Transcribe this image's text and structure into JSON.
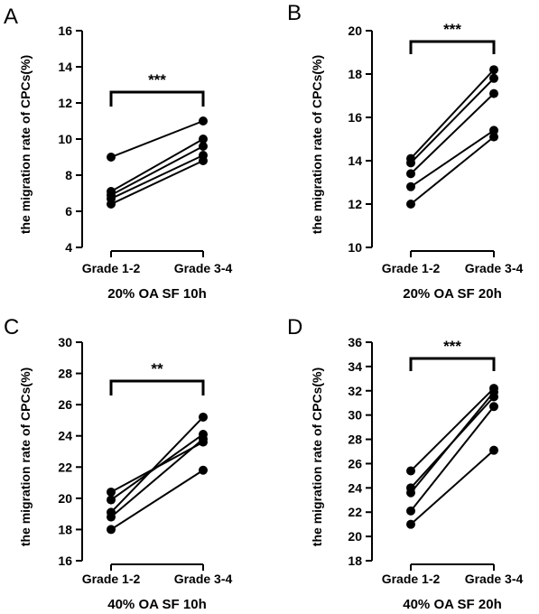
{
  "figure": {
    "colors": {
      "ink": "#000000",
      "background": "#ffffff"
    }
  },
  "chart_data": [
    {
      "type": "line",
      "panel": "A",
      "ylabel": "the migration rate of CPCs(%)",
      "xlabel": "20% OA SF  10h",
      "categories": [
        "Grade 1-2",
        "Grade 3-4"
      ],
      "ylim": [
        4,
        16
      ],
      "yticks": [
        4,
        6,
        8,
        10,
        12,
        14,
        16
      ],
      "significance": "***",
      "series": [
        {
          "values": [
            9.0,
            11.0
          ]
        },
        {
          "values": [
            7.1,
            10.0
          ]
        },
        {
          "values": [
            6.9,
            9.6
          ]
        },
        {
          "values": [
            6.7,
            9.1
          ]
        },
        {
          "values": [
            6.4,
            8.8
          ]
        }
      ]
    },
    {
      "type": "line",
      "panel": "B",
      "ylabel": "the migration rate of CPCs(%)",
      "xlabel": "20% OA SF  20h",
      "categories": [
        "Grade 1-2",
        "Grade 3-4"
      ],
      "ylim": [
        10,
        20
      ],
      "yticks": [
        10,
        12,
        14,
        16,
        18,
        20
      ],
      "significance": "***",
      "series": [
        {
          "values": [
            14.1,
            18.2
          ]
        },
        {
          "values": [
            13.9,
            17.8
          ]
        },
        {
          "values": [
            13.4,
            17.1
          ]
        },
        {
          "values": [
            12.8,
            15.4
          ]
        },
        {
          "values": [
            12.0,
            15.1
          ]
        }
      ]
    },
    {
      "type": "line",
      "panel": "C",
      "ylabel": "the migration rate of CPCs(%)",
      "xlabel": "40% OA SF 10h",
      "categories": [
        "Grade 1-2",
        "Grade 3-4"
      ],
      "ylim": [
        16,
        30
      ],
      "yticks": [
        16,
        18,
        20,
        22,
        24,
        26,
        28,
        30
      ],
      "significance": "**",
      "series": [
        {
          "values": [
            20.4,
            23.6
          ]
        },
        {
          "values": [
            19.9,
            24.1
          ]
        },
        {
          "values": [
            19.1,
            25.2
          ]
        },
        {
          "values": [
            18.8,
            23.8
          ]
        },
        {
          "values": [
            18.0,
            21.8
          ]
        }
      ]
    },
    {
      "type": "line",
      "panel": "D",
      "ylabel": "the migration rate of CPCs(%)",
      "xlabel": "40% OA SF 20h",
      "categories": [
        "Grade 1-2",
        "Grade 3-4"
      ],
      "ylim": [
        18,
        36
      ],
      "yticks": [
        18,
        20,
        22,
        24,
        26,
        28,
        30,
        32,
        34,
        36
      ],
      "significance": "***",
      "series": [
        {
          "values": [
            25.4,
            32.2
          ]
        },
        {
          "values": [
            24.0,
            31.5
          ]
        },
        {
          "values": [
            23.6,
            31.9
          ]
        },
        {
          "values": [
            22.1,
            30.7
          ]
        },
        {
          "values": [
            21.0,
            27.1
          ]
        }
      ]
    }
  ]
}
